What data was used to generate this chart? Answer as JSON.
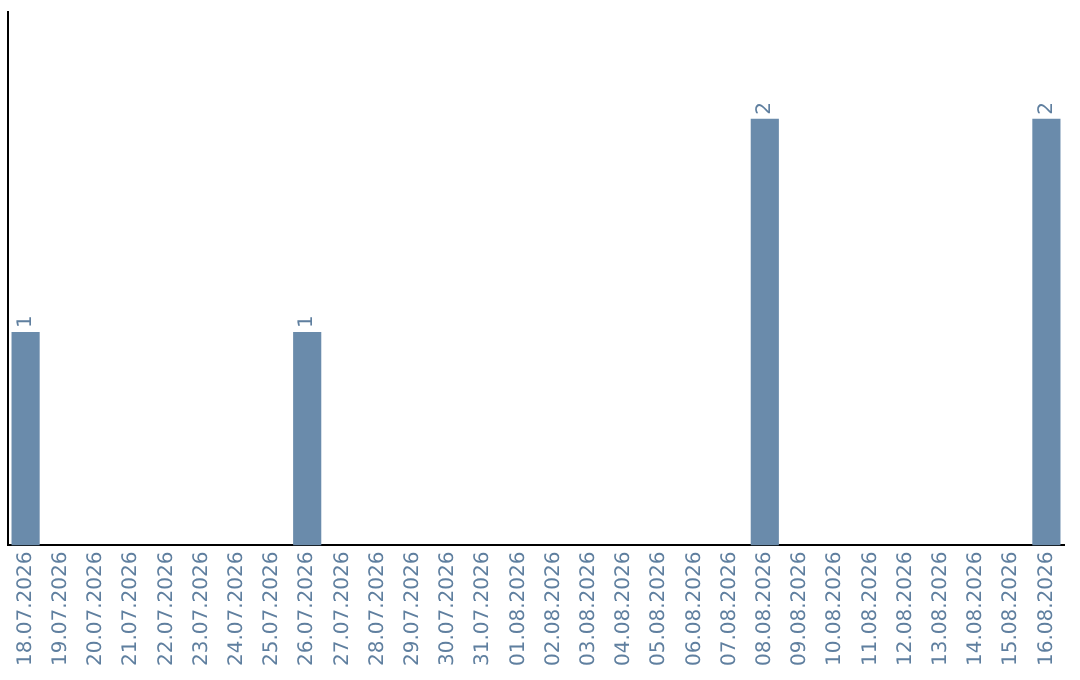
{
  "chart_data": {
    "type": "bar",
    "categories": [
      "18.07.2026",
      "19.07.2026",
      "20.07.2026",
      "21.07.2026",
      "22.07.2026",
      "23.07.2026",
      "24.07.2026",
      "25.07.2026",
      "26.07.2026",
      "27.07.2026",
      "28.07.2026",
      "29.07.2026",
      "30.07.2026",
      "31.07.2026",
      "01.08.2026",
      "02.08.2026",
      "03.08.2026",
      "04.08.2026",
      "05.08.2026",
      "06.08.2026",
      "07.08.2026",
      "08.08.2026",
      "09.08.2026",
      "10.08.2026",
      "11.08.2026",
      "12.08.2026",
      "13.08.2026",
      "14.08.2026",
      "15.08.2026",
      "16.08.2026"
    ],
    "values": [
      1,
      0,
      0,
      0,
      0,
      0,
      0,
      0,
      1,
      0,
      0,
      0,
      0,
      0,
      0,
      0,
      0,
      0,
      0,
      0,
      0,
      2,
      0,
      0,
      0,
      0,
      0,
      0,
      0,
      2
    ],
    "value_labels": [
      "1",
      null,
      null,
      null,
      null,
      null,
      null,
      null,
      "1",
      null,
      null,
      null,
      null,
      null,
      null,
      null,
      null,
      null,
      null,
      null,
      null,
      "2",
      null,
      null,
      null,
      null,
      null,
      null,
      null,
      "2"
    ],
    "color": "#6a8bab",
    "grid": false,
    "legend": false,
    "tick_labels": "x"
  }
}
